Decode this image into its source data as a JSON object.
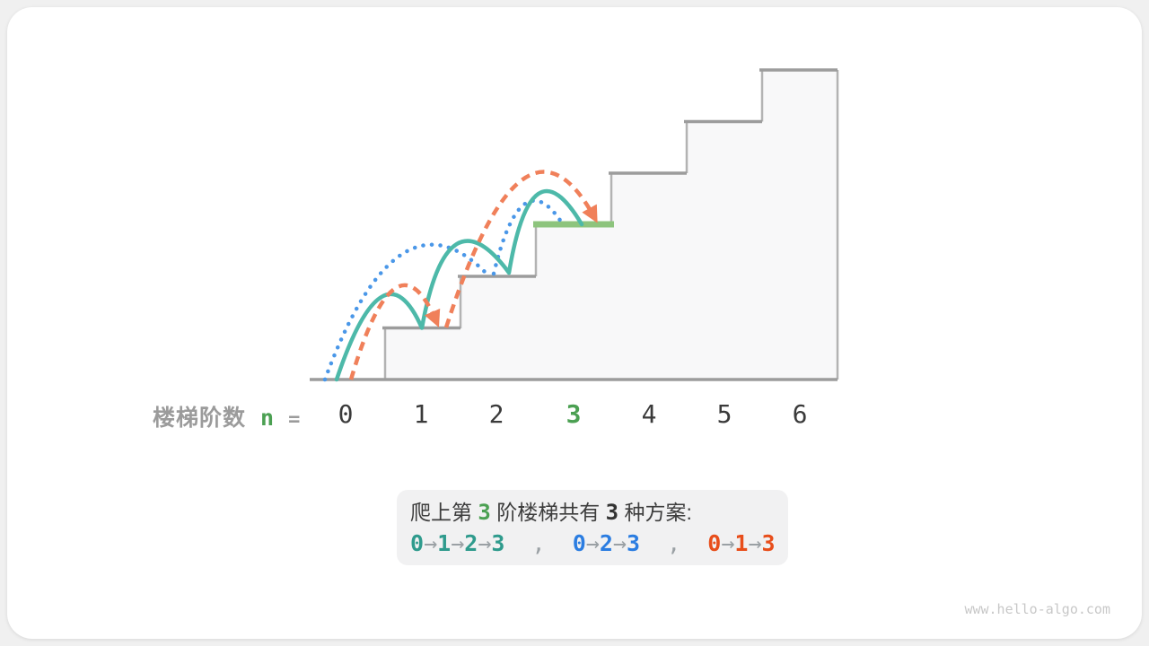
{
  "figure": {
    "axis_label": {
      "prefix": "楼梯阶数",
      "variable": "n",
      "equals": "="
    },
    "ticks": [
      "0",
      "1",
      "2",
      "3",
      "4",
      "5",
      "6"
    ],
    "highlighted_tick": "3",
    "stairs": {
      "num_steps": 6,
      "highlighted_step": 3
    },
    "paths": [
      {
        "id": "path-0-1-2-3",
        "route": "0→1→2→3",
        "line_style": "solid",
        "color": "#4db9a9"
      },
      {
        "id": "path-0-2-3",
        "route": "0→2→3",
        "line_style": "dotted",
        "color": "#4a97e8"
      },
      {
        "id": "path-0-1-3",
        "route": "0→1→3",
        "line_style": "dashed",
        "color": "#f0805a"
      }
    ]
  },
  "colors": {
    "highlight_green_bar": "#8dc47d",
    "green_text": "#4ba052",
    "stair_fill": "#f8f8f9",
    "tread_gray": "#9c9c9c",
    "riser_gray": "#b3b3b3"
  },
  "caption": {
    "line1": [
      {
        "t": "爬上第 ",
        "s": "text"
      },
      {
        "t": "3",
        "s": "num-green"
      },
      {
        "t": " 阶楼梯共有 ",
        "s": "text"
      },
      {
        "t": "3",
        "s": "num-dark"
      },
      {
        "t": " 种方案:",
        "s": "text"
      }
    ],
    "line2": [
      {
        "t": "0",
        "s": "teal"
      },
      {
        "t": "→",
        "s": "arrow"
      },
      {
        "t": "1",
        "s": "teal"
      },
      {
        "t": "→",
        "s": "arrow"
      },
      {
        "t": "2",
        "s": "teal"
      },
      {
        "t": "→",
        "s": "arrow"
      },
      {
        "t": "3",
        "s": "teal"
      },
      {
        "t": "  ,  ",
        "s": "comma"
      },
      {
        "t": "0",
        "s": "blue"
      },
      {
        "t": "→",
        "s": "arrow"
      },
      {
        "t": "2",
        "s": "blue"
      },
      {
        "t": "→",
        "s": "arrow"
      },
      {
        "t": "3",
        "s": "blue"
      },
      {
        "t": "  ,  ",
        "s": "comma"
      },
      {
        "t": "0",
        "s": "orange"
      },
      {
        "t": "→",
        "s": "arrow"
      },
      {
        "t": "1",
        "s": "orange"
      },
      {
        "t": "→",
        "s": "arrow"
      },
      {
        "t": "3",
        "s": "orange"
      }
    ]
  },
  "watermark": "www.hello-algo.com"
}
